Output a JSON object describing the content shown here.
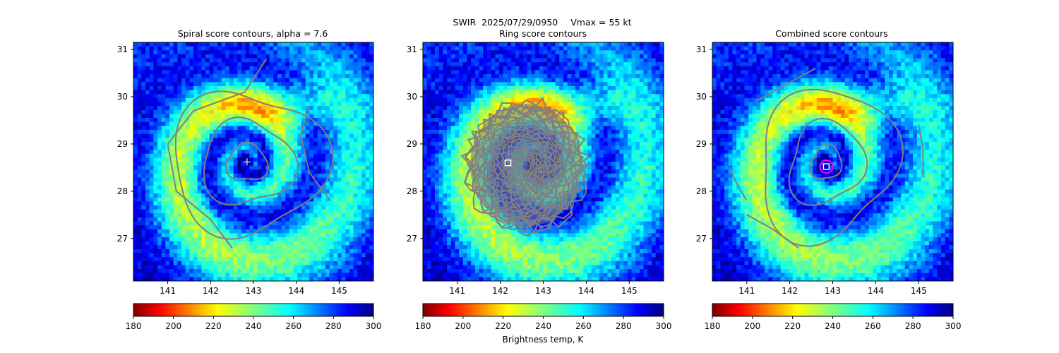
{
  "figure": {
    "suptitle_product": "SWIR",
    "suptitle_datetime": "2025/07/29/0950",
    "suptitle_vmax": "Vmax = 55 kt",
    "colorbar_label": "Brightness temp, K"
  },
  "chart_data": [
    {
      "type": "heatmap",
      "panel": "spiral",
      "title": "Spiral score contours, alpha =  7.6",
      "alpha": 7.6,
      "xlim": [
        140.2,
        145.8
      ],
      "ylim": [
        26.1,
        31.15
      ],
      "xticks": [
        141,
        142,
        143,
        144,
        145
      ],
      "yticks": [
        27,
        28,
        29,
        30,
        31
      ],
      "center_marker": {
        "shape": "plus",
        "lon": 142.85,
        "lat": 28.62,
        "color": "#ffffff"
      },
      "colorbar": {
        "min": 180,
        "max": 300,
        "ticks": [
          180,
          200,
          220,
          240,
          260,
          280,
          300
        ]
      }
    },
    {
      "type": "heatmap",
      "panel": "ring",
      "title": "Ring score contours",
      "xlim": [
        140.2,
        145.8
      ],
      "ylim": [
        26.1,
        31.15
      ],
      "xticks": [
        141,
        142,
        143,
        144,
        145
      ],
      "yticks": [
        27,
        28,
        29,
        30,
        31
      ],
      "center_marker": {
        "shape": "square",
        "lon": 142.18,
        "lat": 28.6,
        "color": "#ffffff"
      },
      "colorbar": {
        "min": 180,
        "max": 300,
        "ticks": [
          180,
          200,
          220,
          240,
          260,
          280,
          300
        ]
      }
    },
    {
      "type": "heatmap",
      "panel": "combined",
      "title": "Combined score contours",
      "xlim": [
        140.2,
        145.8
      ],
      "ylim": [
        26.1,
        31.15
      ],
      "xticks": [
        141,
        142,
        143,
        144,
        145
      ],
      "yticks": [
        27,
        28,
        29,
        30,
        31
      ],
      "center_marker": {
        "shape": "square",
        "lon": 142.85,
        "lat": 28.52,
        "color": "#ffffff"
      },
      "center_circle": {
        "lon": 142.85,
        "lat": 28.52,
        "color": "#ff00ff"
      },
      "colorbar": {
        "min": 180,
        "max": 300,
        "ticks": [
          180,
          200,
          220,
          240,
          260,
          280,
          300
        ]
      }
    }
  ],
  "storm_center": {
    "lon": 142.85,
    "lat": 28.6
  },
  "colors": {
    "contour": "#808080",
    "frame": "#000000",
    "jet_reversed": [
      "#7f0000",
      "#ff0000",
      "#ff7f00",
      "#ffff00",
      "#7fff7f",
      "#00ffff",
      "#007fff",
      "#0000ff",
      "#00007f"
    ]
  }
}
